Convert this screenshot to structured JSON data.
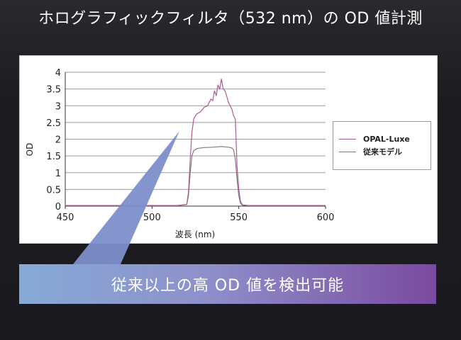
{
  "title": "ホログラフィックフィルタ（532 nm）の OD 値計測",
  "banner": "従来以上の高 OD 値を検出可能",
  "colors": {
    "opal_luxe": "#b05a92",
    "conventional": "#7d7d7d",
    "callout": "#7d8fca"
  },
  "chart_data": {
    "type": "line",
    "xlabel": "波長 (nm)",
    "ylabel": "OD",
    "xlim": [
      450,
      600
    ],
    "ylim": [
      0,
      4
    ],
    "xticks": [
      "450",
      "500",
      "550",
      "600"
    ],
    "yticks": [
      "0",
      "0.5",
      "1",
      "1.5",
      "2",
      "2.5",
      "3",
      "3.5",
      "4"
    ],
    "grid": "horizontal",
    "legend_position": "right",
    "series": [
      {
        "name": "OPAL-Luxe",
        "x": [
          450,
          515,
          520,
          521,
          522,
          523,
          524,
          525,
          526,
          528,
          530,
          532,
          534,
          535,
          536,
          537,
          538,
          539,
          540,
          541,
          542,
          543,
          544,
          546,
          547,
          548,
          549,
          550,
          551,
          552,
          555,
          600
        ],
        "y": [
          0.02,
          0.02,
          0.05,
          0.4,
          1.4,
          2.2,
          2.6,
          2.7,
          2.76,
          2.82,
          2.95,
          3.0,
          3.2,
          3.15,
          3.45,
          3.3,
          3.62,
          3.5,
          3.8,
          3.5,
          3.45,
          3.3,
          3.1,
          2.9,
          2.7,
          2.6,
          1.2,
          0.5,
          0.15,
          0.04,
          0.02,
          0.02
        ]
      },
      {
        "name": "従来モデル",
        "x": [
          450,
          515,
          520,
          521,
          522,
          523,
          524,
          526,
          530,
          535,
          540,
          544,
          546,
          547,
          548,
          549,
          550,
          551,
          552,
          555,
          600
        ],
        "y": [
          0.02,
          0.02,
          0.05,
          0.3,
          1.0,
          1.5,
          1.66,
          1.72,
          1.75,
          1.76,
          1.78,
          1.76,
          1.74,
          1.68,
          1.4,
          0.8,
          0.3,
          0.08,
          0.03,
          0.02,
          0.02
        ]
      }
    ]
  }
}
